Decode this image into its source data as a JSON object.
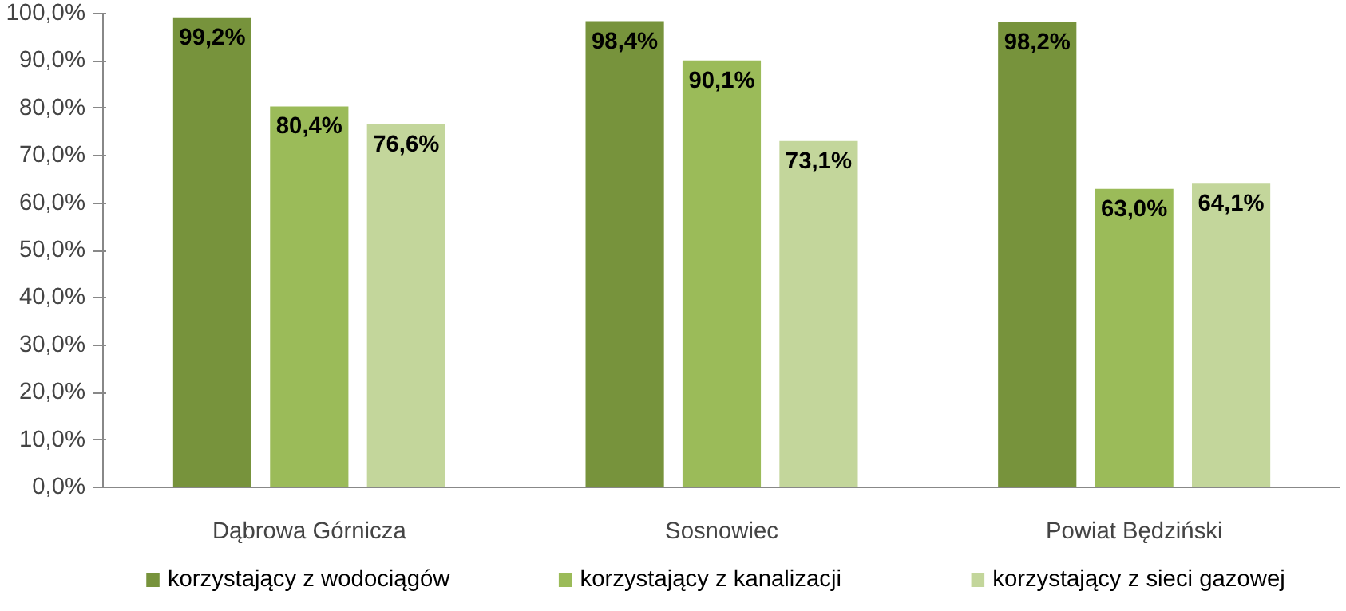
{
  "chart_data": {
    "type": "bar",
    "categories": [
      "Dąbrowa Górnicza",
      "Sosnowiec",
      "Powiat Będziński"
    ],
    "series": [
      {
        "name": "korzystający z wodociągów",
        "color": "#77933c",
        "values": [
          99.2,
          98.4,
          98.2
        ],
        "value_labels": [
          "99,2%",
          "98,4%",
          "98,2%"
        ]
      },
      {
        "name": "korzystający z kanalizacji",
        "color": "#9bbb59",
        "values": [
          80.4,
          90.1,
          63.0
        ],
        "value_labels": [
          "80,4%",
          "90,1%",
          "63,0%"
        ]
      },
      {
        "name": "korzystający z sieci gazowej",
        "color": "#c3d69b",
        "values": [
          76.6,
          73.1,
          64.1
        ],
        "value_labels": [
          "76,6%",
          "73,1%",
          "64,1%"
        ]
      }
    ],
    "ylim": [
      0,
      100
    ],
    "yticks": [
      {
        "value": 0,
        "label": "0,0%"
      },
      {
        "value": 10,
        "label": "10,0%"
      },
      {
        "value": 20,
        "label": "20,0%"
      },
      {
        "value": 30,
        "label": "30,0%"
      },
      {
        "value": 40,
        "label": "40,0%"
      },
      {
        "value": 50,
        "label": "50,0%"
      },
      {
        "value": 60,
        "label": "60,0%"
      },
      {
        "value": 70,
        "label": "70,0%"
      },
      {
        "value": 80,
        "label": "80,0%"
      },
      {
        "value": 90,
        "label": "90,0%"
      },
      {
        "value": 100,
        "label": "100,0%"
      }
    ],
    "grid": false,
    "legend": "bottom"
  }
}
